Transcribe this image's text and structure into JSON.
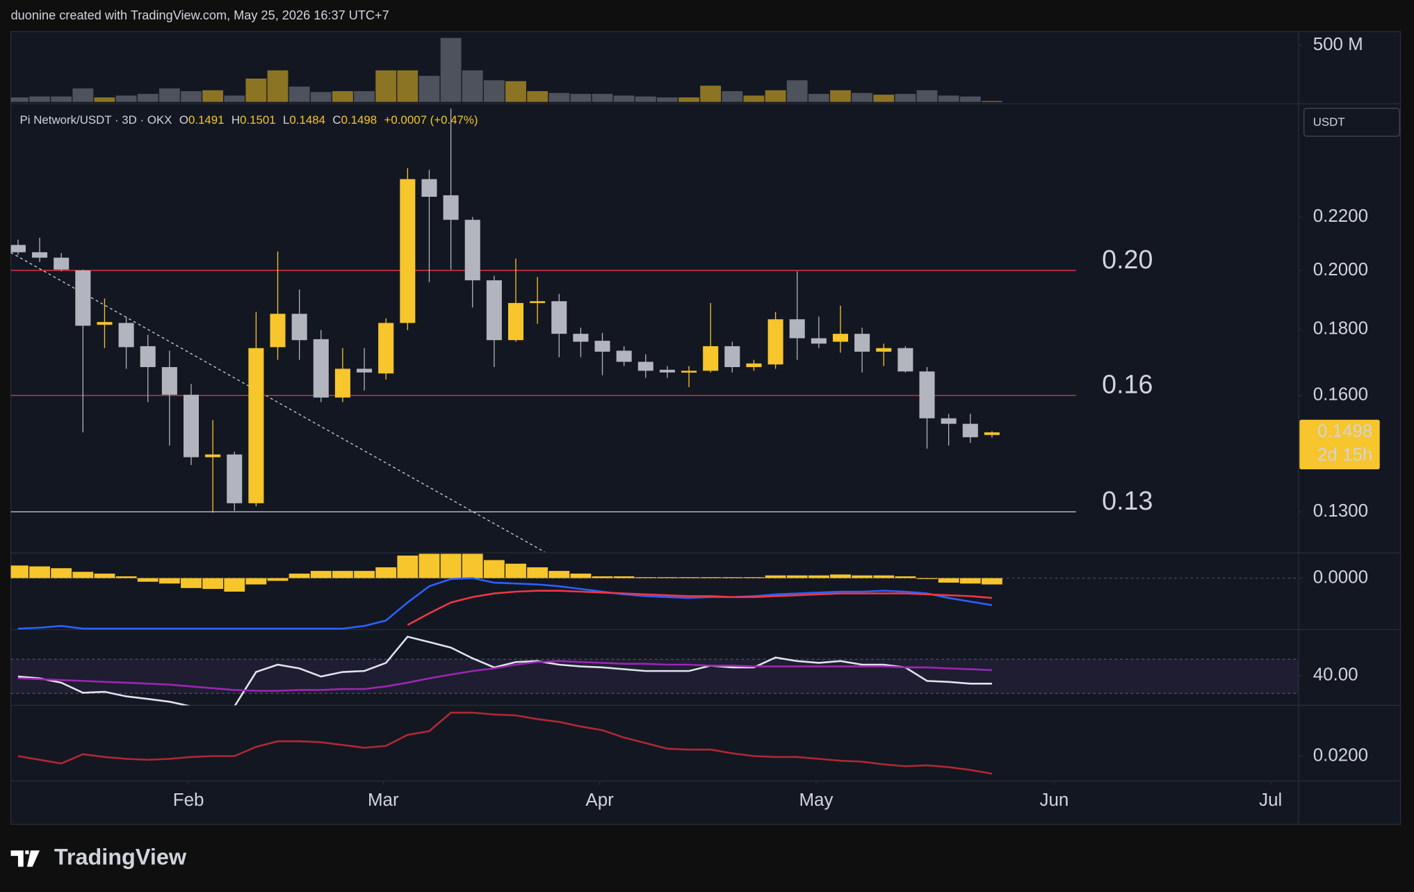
{
  "header": {
    "attribution": "duonine created with TradingView.com, May 25, 2026 16:37 UTC+7"
  },
  "footer": {
    "brand": "TradingView"
  },
  "chart_data": [
    {
      "type": "candlestick",
      "title": "Pi Network/USDT · 3D · OKX",
      "ohlc_labels": [
        "O",
        "H",
        "L",
        "C"
      ],
      "change": "+0.0007 (+0.47%)",
      "currency": "USDT",
      "log_scale": true,
      "up_color": "#f7c52c",
      "down_color": "#b2b5be",
      "candles": [
        [
          0.2093,
          0.2113,
          0.2056,
          0.2066
        ],
        [
          0.2066,
          0.212,
          0.203,
          0.2046
        ],
        [
          0.2046,
          0.2063,
          0.1997,
          0.2003
        ],
        [
          0.2,
          0.2003,
          0.1498,
          0.1812
        ],
        [
          0.1815,
          0.1902,
          0.1741,
          0.1824
        ],
        [
          0.1821,
          0.1842,
          0.1678,
          0.1744
        ],
        [
          0.1747,
          0.1783,
          0.1581,
          0.1683
        ],
        [
          0.1683,
          0.1733,
          0.1463,
          0.1602
        ],
        [
          0.1602,
          0.1633,
          0.1413,
          0.1433
        ],
        [
          0.1433,
          0.1531,
          0.1298,
          0.144
        ],
        [
          0.144,
          0.1447,
          0.1302,
          0.132
        ],
        [
          0.132,
          0.1857,
          0.1313,
          0.1741
        ],
        [
          0.1744,
          0.2069,
          0.1705,
          0.1851
        ],
        [
          0.1851,
          0.1933,
          0.1705,
          0.1766
        ],
        [
          0.1769,
          0.1798,
          0.1581,
          0.1594
        ],
        [
          0.1594,
          0.1741,
          0.1581,
          0.1678
        ],
        [
          0.1678,
          0.1741,
          0.1614,
          0.1667
        ],
        [
          0.1664,
          0.1836,
          0.1646,
          0.1821
        ],
        [
          0.1821,
          0.24,
          0.1798,
          0.2354
        ],
        [
          0.2354,
          0.2393,
          0.1959,
          0.2281
        ],
        [
          0.2287,
          0.267,
          0.2003,
          0.2189
        ],
        [
          0.2189,
          0.22,
          0.1872,
          0.1965
        ],
        [
          0.1965,
          0.1981,
          0.1683,
          0.1766
        ],
        [
          0.1766,
          0.2043,
          0.1761,
          0.1887
        ],
        [
          0.1887,
          0.1977,
          0.1818,
          0.1893
        ],
        [
          0.1893,
          0.1918,
          0.1713,
          0.1786
        ],
        [
          0.1786,
          0.1806,
          0.1713,
          0.1761
        ],
        [
          0.1764,
          0.1789,
          0.1659,
          0.173
        ],
        [
          0.1733,
          0.1747,
          0.1686,
          0.1699
        ],
        [
          0.1699,
          0.1722,
          0.1651,
          0.1672
        ],
        [
          0.1675,
          0.1686,
          0.1651,
          0.1667
        ],
        [
          0.1667,
          0.1686,
          0.1624,
          0.1672
        ],
        [
          0.1672,
          0.1887,
          0.1667,
          0.1747
        ],
        [
          0.1747,
          0.1761,
          0.1667,
          0.1683
        ],
        [
          0.1683,
          0.1705,
          0.1672,
          0.1694
        ],
        [
          0.1691,
          0.1857,
          0.1678,
          0.1833
        ],
        [
          0.1833,
          0.1997,
          0.1705,
          0.1772
        ],
        [
          0.1772,
          0.1842,
          0.1741,
          0.1755
        ],
        [
          0.1761,
          0.1878,
          0.1727,
          0.1786
        ],
        [
          0.1786,
          0.1806,
          0.1667,
          0.173
        ],
        [
          0.173,
          0.1755,
          0.1686,
          0.1741
        ],
        [
          0.1741,
          0.1747,
          0.1667,
          0.167
        ],
        [
          0.167,
          0.1683,
          0.1455,
          0.1536
        ],
        [
          0.1536,
          0.1548,
          0.1463,
          0.1521
        ],
        [
          0.1521,
          0.1548,
          0.147,
          0.1485
        ],
        [
          0.1491,
          0.1501,
          0.1484,
          0.1498
        ]
      ],
      "ylim": [
        0.121,
        0.268
      ],
      "yticks": [
        {
          "value": 0.22,
          "label": "0.2200"
        },
        {
          "value": 0.2,
          "label": "0.2000"
        },
        {
          "value": 0.18,
          "label": "0.1800"
        },
        {
          "value": 0.16,
          "label": "0.1600"
        },
        {
          "value": 0.13,
          "label": "0.1300"
        }
      ],
      "levels": [
        {
          "value": 0.2,
          "label": "0.20",
          "color": "#f23645"
        },
        {
          "value": 0.16,
          "label": "0.16",
          "color": "#f23645"
        },
        {
          "value": 0.13,
          "label": "0.13",
          "color": "#d1d4dc"
        }
      ],
      "last_price": {
        "value": 0.1498,
        "label": "0.1498",
        "countdown": "2d 15h"
      },
      "xlim": [
        -0.333,
        59.167
      ],
      "xticks": [
        {
          "value": 7.875,
          "label": "Feb"
        },
        {
          "value": 16.875,
          "label": "Mar"
        },
        {
          "value": 26.875,
          "label": "Apr"
        },
        {
          "value": 36.875,
          "label": "May"
        },
        {
          "value": 47.875,
          "label": "Jun"
        },
        {
          "value": 57.875,
          "label": "Jul"
        }
      ]
    },
    {
      "type": "bar",
      "up_color": "#8c7425",
      "down_color": "#4e525c",
      "values": [
        40,
        48,
        48,
        119,
        40,
        56,
        71,
        119,
        95,
        103,
        56,
        206,
        278,
        135,
        87,
        95,
        95,
        278,
        278,
        230,
        564,
        278,
        191,
        183,
        95,
        79,
        71,
        71,
        56,
        48,
        40,
        40,
        143,
        95,
        56,
        103,
        191,
        71,
        103,
        79,
        64,
        71,
        103,
        56,
        48,
        8
      ],
      "ylim": [
        0,
        580
      ],
      "yticks": [
        {
          "value": 500,
          "label": "500 M"
        }
      ]
    },
    {
      "type": "macd",
      "color": "#f7c52c",
      "histogram": [
        0.007,
        0.0065,
        0.0055,
        0.0035,
        0.0025,
        0.001,
        -0.002,
        -0.003,
        -0.0055,
        -0.006,
        -0.0075,
        -0.0035,
        -0.0015,
        0.0025,
        0.004,
        0.004,
        0.004,
        0.006,
        0.0125,
        0.0135,
        0.0135,
        0.0135,
        0.01,
        0.008,
        0.006,
        0.004,
        0.0025,
        0.001,
        0.001,
        0.0005,
        0.0005,
        0.0005,
        0.0005,
        0.0005,
        0.0005,
        0.0015,
        0.0015,
        0.0015,
        0.002,
        0.0015,
        0.0015,
        0.001,
        -0.0005,
        -0.0025,
        -0.003,
        -0.0035
      ],
      "series": [
        {
          "color": "#2962ff",
          "values": [
            -0.028,
            -0.0275,
            -0.0265,
            -0.028,
            -0.028,
            -0.028,
            -0.028,
            -0.028,
            -0.028,
            -0.028,
            -0.028,
            -0.028,
            -0.028,
            -0.028,
            -0.028,
            -0.028,
            -0.0265,
            -0.0235,
            -0.0135,
            -0.0045,
            -0.0005,
            0,
            -0.0025,
            -0.003,
            -0.0035,
            -0.0045,
            -0.006,
            -0.0075,
            -0.009,
            -0.01,
            -0.0105,
            -0.011,
            -0.0105,
            -0.0105,
            -0.01,
            -0.009,
            -0.0085,
            -0.008,
            -0.0075,
            -0.0075,
            -0.007,
            -0.0075,
            -0.0085,
            -0.011,
            -0.013,
            -0.015
          ]
        },
        {
          "color": "#f23645",
          "values": [
            null,
            null,
            null,
            null,
            null,
            null,
            null,
            null,
            null,
            null,
            null,
            null,
            null,
            null,
            null,
            null,
            null,
            null,
            -0.026,
            -0.0195,
            -0.0135,
            -0.0105,
            -0.0085,
            -0.0075,
            -0.007,
            -0.007,
            -0.0075,
            -0.008,
            -0.0085,
            -0.009,
            -0.0095,
            -0.01,
            -0.01,
            -0.0105,
            -0.0105,
            -0.01,
            -0.0095,
            -0.009,
            -0.0085,
            -0.0085,
            -0.0085,
            -0.0085,
            -0.009,
            -0.0095,
            -0.01,
            -0.011
          ]
        }
      ],
      "ylim": [
        -0.0285,
        0.013
      ],
      "yticks": [
        {
          "value": 0,
          "label": "0.0000"
        }
      ]
    },
    {
      "type": "line",
      "band": [
        29,
        50
      ],
      "series": [
        {
          "color": "#e0e3eb",
          "values": [
            39.4,
            38.3,
            35.6,
            29.4,
            30,
            27.2,
            25.6,
            23.9,
            21,
            20,
            21,
            42.2,
            46.7,
            44.4,
            39.4,
            42.2,
            42.8,
            47.8,
            63.9,
            60.6,
            57.2,
            50.6,
            45,
            48.3,
            48.9,
            46.7,
            45.6,
            45,
            43.9,
            42.8,
            42.8,
            42.8,
            46.1,
            45,
            45,
            51.1,
            48.9,
            47.8,
            48.9,
            46.7,
            46.7,
            45,
            36.7,
            36.1,
            35,
            35
          ]
        },
        {
          "color": "#9c27b0",
          "values": [
            38.3,
            37.8,
            37.2,
            36.7,
            36.1,
            35.6,
            35,
            34.4,
            33.3,
            32.2,
            31.1,
            30.6,
            30.6,
            31.1,
            31.1,
            31.7,
            31.7,
            33.3,
            35.6,
            38.3,
            40.6,
            42.8,
            44.4,
            46.7,
            48.3,
            48.9,
            48.3,
            47.8,
            47.2,
            47.2,
            46.7,
            46.7,
            46.1,
            46.1,
            45.6,
            45.6,
            45.6,
            45.6,
            45.6,
            45.6,
            45.6,
            45,
            45,
            44.4,
            43.9,
            43.3
          ]
        }
      ],
      "ylim": [
        21.7,
        67.2
      ],
      "yticks": [
        {
          "value": 40,
          "label": "40.00"
        }
      ]
    },
    {
      "type": "line",
      "series": [
        {
          "color": "#b22833",
          "values": [
            0.02,
            0.0192,
            0.0184,
            0.0204,
            0.0198,
            0.0194,
            0.0192,
            0.0194,
            0.0198,
            0.02,
            0.02,
            0.022,
            0.0232,
            0.0232,
            0.023,
            0.0224,
            0.0218,
            0.0222,
            0.0246,
            0.0254,
            0.0294,
            0.0294,
            0.029,
            0.0288,
            0.028,
            0.0274,
            0.0264,
            0.0256,
            0.024,
            0.0228,
            0.0216,
            0.0214,
            0.0214,
            0.0206,
            0.02,
            0.0198,
            0.0198,
            0.0194,
            0.019,
            0.0188,
            0.0182,
            0.0178,
            0.018,
            0.0176,
            0.017,
            0.0162
          ]
        }
      ],
      "ylim": [
        0.0146,
        0.0306
      ],
      "yticks": [
        {
          "value": 0.02,
          "label": "0.0200"
        }
      ]
    }
  ]
}
